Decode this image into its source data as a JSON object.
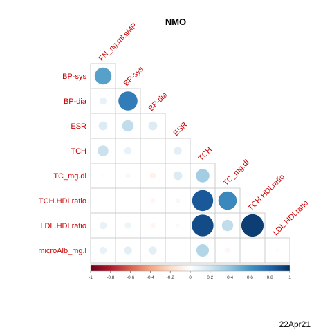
{
  "chart_data": {
    "type": "heatmap",
    "subtype": "correlation-lower-triangle",
    "title": "NMO",
    "row_labels": [
      "BP-sys",
      "BP-dia",
      "ESR",
      "TCH",
      "TC_mg.dl",
      "TCH.HDLratio",
      "LDL.HDLratio",
      "microAlb_mg.l"
    ],
    "col_labels": [
      "FN_ng.ml.sMP",
      "BP-sys",
      "BP-dia",
      "ESR",
      "TCH",
      "TC_mg.dl",
      "TCH.HDLratio",
      "LDL.HDLratio"
    ],
    "matrix": [
      [
        0.55,
        null,
        null,
        null,
        null,
        null,
        null,
        null
      ],
      [
        0.1,
        0.7,
        null,
        null,
        null,
        null,
        null,
        null
      ],
      [
        0.15,
        0.25,
        0.15,
        null,
        null,
        null,
        null,
        null
      ],
      [
        0.22,
        0.1,
        0.0,
        0.12,
        null,
        null,
        null,
        null
      ],
      [
        0.02,
        -0.05,
        -0.07,
        0.15,
        0.35,
        null,
        null,
        null
      ],
      [
        0.01,
        0.01,
        -0.05,
        0.05,
        0.85,
        0.65,
        null,
        null
      ],
      [
        0.1,
        0.08,
        -0.05,
        0.03,
        0.9,
        0.25,
        0.95,
        null
      ],
      [
        0.1,
        0.12,
        0.12,
        0.01,
        0.3,
        -0.05,
        0.01,
        0.02
      ]
    ],
    "colorbar": {
      "min": -1,
      "max": 1,
      "ticks": [
        "-1",
        "-0.8",
        "-0.6",
        "-0.4",
        "-0.2",
        "0",
        "0.2",
        "0.4",
        "0.6",
        "0.8",
        "1"
      ],
      "colors": [
        "#67001F",
        "#B2182B",
        "#D6604D",
        "#F4A582",
        "#FDDBC7",
        "#FFFFFF",
        "#D1E5F0",
        "#92C5DE",
        "#4393C3",
        "#2166AC",
        "#053061"
      ]
    },
    "label_color": "#CC0000",
    "grid": true
  },
  "footer": {
    "date": "22Apr21"
  }
}
